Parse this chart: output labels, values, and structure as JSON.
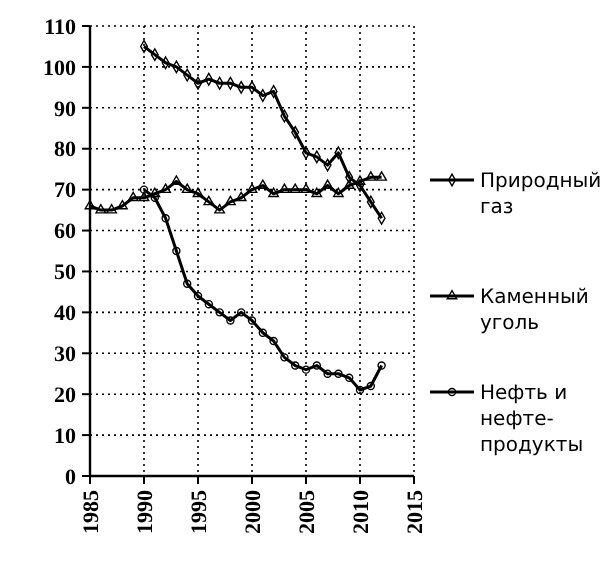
{
  "chart_data": {
    "type": "line",
    "x": [
      1985,
      1986,
      1987,
      1988,
      1989,
      1990,
      1991,
      1992,
      1993,
      1994,
      1995,
      1996,
      1997,
      1998,
      1999,
      2000,
      2001,
      2002,
      2003,
      2004,
      2005,
      2006,
      2007,
      2008,
      2009,
      2010,
      2011,
      2012
    ],
    "series": [
      {
        "name": "Природный\nгаз",
        "color": "#000000",
        "marker": "diamond",
        "values": [
          null,
          null,
          null,
          null,
          null,
          105,
          103,
          101,
          100,
          98,
          96,
          97,
          96,
          96,
          95,
          95,
          93,
          94,
          88,
          84,
          79,
          78,
          76,
          79,
          73,
          71,
          67,
          63
        ]
      },
      {
        "name": "Каменный\nуголь",
        "color": "#000000",
        "marker": "triangle",
        "values": [
          66,
          65,
          65,
          66,
          68,
          68,
          69,
          70,
          72,
          70,
          69,
          67,
          65,
          67,
          68,
          70,
          71,
          69,
          70,
          70,
          70,
          69,
          71,
          69,
          71,
          72,
          73,
          73
        ]
      },
      {
        "name": "Нефть и\nнефте-\nпродукты",
        "color": "#000000",
        "marker": "circle",
        "values": [
          null,
          null,
          null,
          null,
          null,
          70,
          68,
          63,
          55,
          47,
          44,
          42,
          40,
          38,
          40,
          38,
          35,
          33,
          29,
          27,
          26,
          27,
          25,
          25,
          24,
          21,
          22,
          27
        ]
      }
    ],
    "xlim": [
      1985,
      2015
    ],
    "xticks": [
      1985,
      1990,
      1995,
      2000,
      2005,
      2010,
      2015
    ],
    "ylim": [
      0,
      110
    ],
    "yticks": [
      0,
      10,
      20,
      30,
      40,
      50,
      60,
      70,
      80,
      90,
      100,
      110
    ],
    "grid": true,
    "legend": "right",
    "line_style": "solid"
  }
}
